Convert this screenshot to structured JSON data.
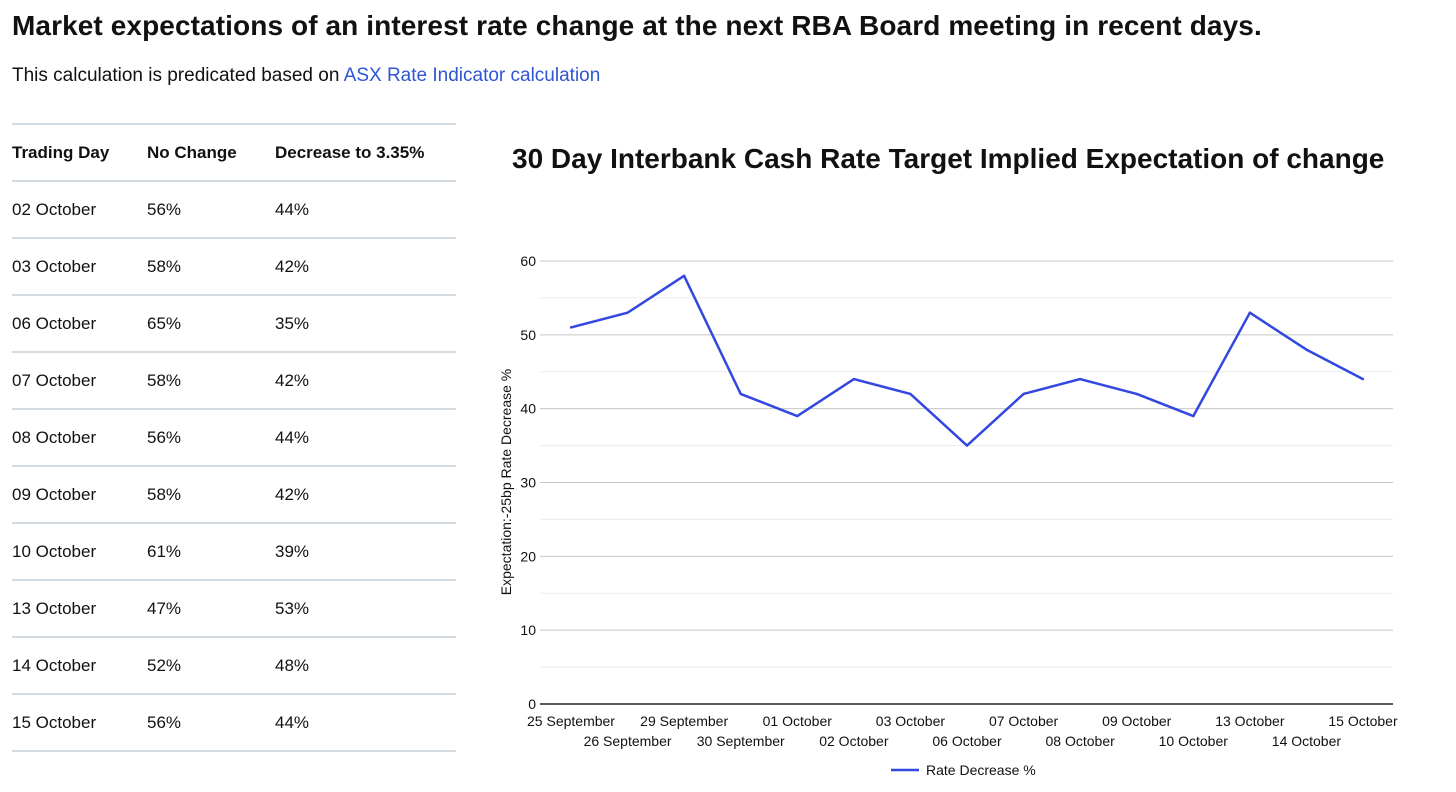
{
  "header": {
    "title": "Market expectations of an interest rate change at the next RBA Board meeting in recent days.",
    "intro_text": "This calculation is predicated based on ",
    "intro_link": "ASX Rate Indicator calculation"
  },
  "table": {
    "headers": [
      "Trading Day",
      "No Change",
      "Decrease to 3.35%"
    ],
    "rows": [
      [
        "02 October",
        "56%",
        "44%"
      ],
      [
        "03 October",
        "58%",
        "42%"
      ],
      [
        "06 October",
        "65%",
        "35%"
      ],
      [
        "07 October",
        "58%",
        "42%"
      ],
      [
        "08 October",
        "56%",
        "44%"
      ],
      [
        "09 October",
        "58%",
        "42%"
      ],
      [
        "10 October",
        "61%",
        "39%"
      ],
      [
        "13 October",
        "47%",
        "53%"
      ],
      [
        "14 October",
        "52%",
        "48%"
      ],
      [
        "15 October",
        "56%",
        "44%"
      ]
    ]
  },
  "chart_data": {
    "type": "line",
    "title": "30 Day Interbank Cash Rate Target Implied Expectation of change",
    "xlabel": "",
    "ylabel": "Expectation:-25bp Rate Decrease %",
    "ylim": [
      0,
      60
    ],
    "yticks": [
      0,
      10,
      20,
      30,
      40,
      50,
      60
    ],
    "grid": true,
    "legend_position": "bottom",
    "categories": [
      "25 September",
      "26 September",
      "29 September",
      "30 September",
      "01 October",
      "02 October",
      "03 October",
      "06 October",
      "07 October",
      "08 October",
      "09 October",
      "10 October",
      "13 October",
      "14 October",
      "15 October"
    ],
    "series": [
      {
        "name": "Rate Decrease %",
        "color": "#3348e0",
        "values": [
          51,
          53,
          58,
          42,
          39,
          44,
          42,
          35,
          42,
          44,
          42,
          39,
          53,
          48,
          44
        ]
      }
    ]
  }
}
